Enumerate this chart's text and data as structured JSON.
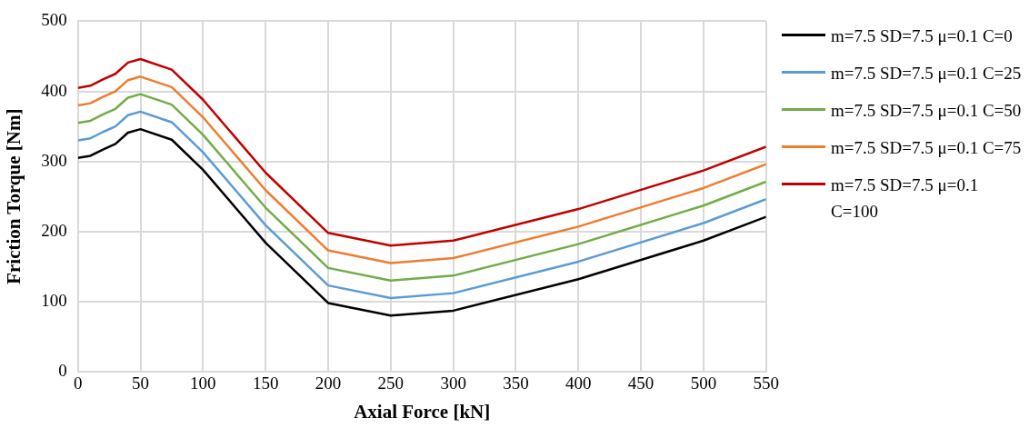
{
  "chart_data": {
    "type": "line",
    "xlabel": "Axial Force [kN]",
    "ylabel": "Friction Torque [Nm]",
    "x": [
      0,
      10,
      20,
      30,
      40,
      50,
      75,
      100,
      150,
      200,
      250,
      300,
      400,
      500,
      550
    ],
    "series": [
      {
        "name": "m=7.5 SD=7.5 μ=0.1 C=0",
        "color": "#000000",
        "values": [
          305,
          308,
          317,
          325,
          341,
          346,
          331,
          288,
          184,
          98,
          80,
          87,
          132,
          187,
          221
        ]
      },
      {
        "name": "m=7.5 SD=7.5 μ=0.1 C=25",
        "color": "#5b9bd5",
        "values": [
          330,
          333,
          342,
          350,
          366,
          371,
          356,
          313,
          209,
          123,
          105,
          112,
          157,
          212,
          246
        ]
      },
      {
        "name": "m=7.5 SD=7.5 μ=0.1 C=50",
        "color": "#70ad47",
        "values": [
          355,
          358,
          367,
          375,
          391,
          396,
          381,
          338,
          234,
          148,
          130,
          137,
          182,
          237,
          271
        ]
      },
      {
        "name": "m=7.5 SD=7.5 μ=0.1 C=75",
        "color": "#ed7d31",
        "values": [
          380,
          383,
          392,
          400,
          416,
          421,
          406,
          363,
          259,
          173,
          155,
          162,
          207,
          262,
          296
        ]
      },
      {
        "name": "m=7.5 SD=7.5 μ=0.1 C=100",
        "color": "#c00000",
        "values": [
          405,
          408,
          417,
          425,
          441,
          446,
          431,
          388,
          284,
          198,
          180,
          187,
          232,
          287,
          321
        ]
      }
    ],
    "xlim": [
      0,
      550
    ],
    "xticks": [
      0,
      50,
      100,
      150,
      200,
      250,
      300,
      350,
      400,
      450,
      500,
      550
    ],
    "ylim": [
      0,
      500
    ],
    "yticks": [
      0,
      100,
      200,
      300,
      400,
      500
    ],
    "grid": true,
    "legend": "right",
    "marker": "none",
    "line_style": "solid"
  }
}
